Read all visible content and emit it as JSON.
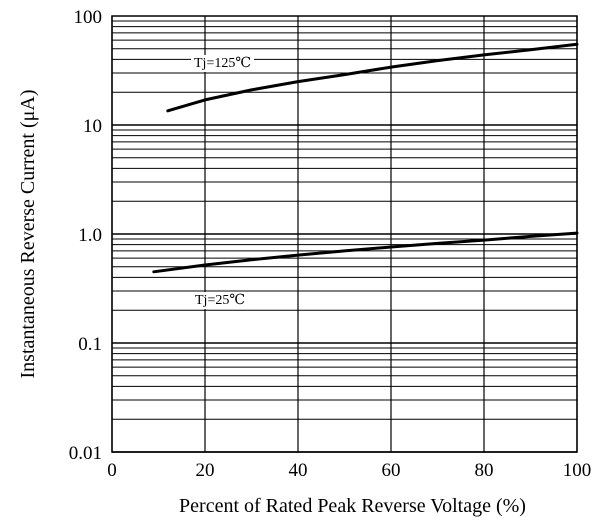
{
  "chart_data": {
    "type": "line",
    "xlabel": "Percent of Rated Peak Reverse Voltage (%)",
    "ylabel": "Instantaneous Reverse Current (μA)",
    "xlim": [
      0,
      100
    ],
    "ylim": [
      0.01,
      100
    ],
    "yscale": "log",
    "grid": true,
    "x_ticks": [
      {
        "value": 0,
        "label": "0"
      },
      {
        "value": 20,
        "label": "20"
      },
      {
        "value": 40,
        "label": "40"
      },
      {
        "value": 60,
        "label": "60"
      },
      {
        "value": 80,
        "label": "80"
      },
      {
        "value": 100,
        "label": "100"
      }
    ],
    "y_ticks": [
      {
        "value": 100,
        "label": "100"
      },
      {
        "value": 10,
        "label": "10"
      },
      {
        "value": 1,
        "label": "1.0"
      },
      {
        "value": 0.1,
        "label": "0.1"
      },
      {
        "value": 0.01,
        "label": "0.01"
      }
    ],
    "series": [
      {
        "name": "Tj=125℃",
        "color": "#000000",
        "x": [
          12,
          20,
          30,
          40,
          50,
          60,
          70,
          80,
          90,
          100
        ],
        "y": [
          13.5,
          17,
          21,
          25,
          29,
          34,
          39,
          44,
          49,
          55
        ]
      },
      {
        "name": "Tj=25℃",
        "color": "#000000",
        "x": [
          9,
          20,
          30,
          40,
          50,
          60,
          70,
          80,
          90,
          100
        ],
        "y": [
          0.45,
          0.52,
          0.58,
          0.64,
          0.7,
          0.76,
          0.82,
          0.88,
          0.95,
          1.02
        ]
      }
    ]
  }
}
